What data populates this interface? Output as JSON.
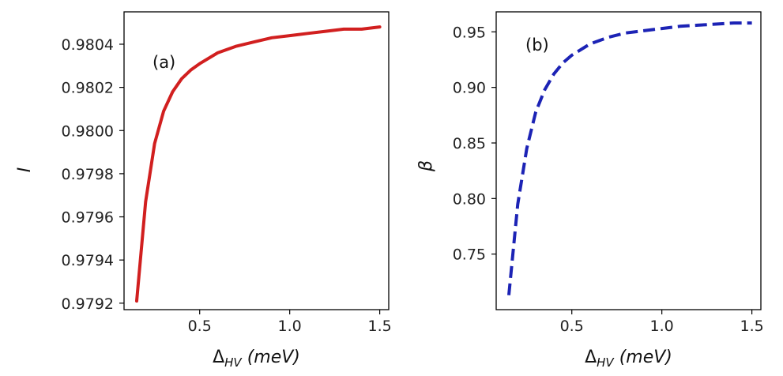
{
  "chart_data": [
    {
      "type": "line",
      "panel_label": "(a)",
      "ylabel": "I",
      "xlabel": {
        "base": "Δ",
        "sub": "HV",
        "unit": "(meV)"
      },
      "xlim": [
        0.08,
        1.55
      ],
      "ylim": [
        0.97917,
        0.98055
      ],
      "xticks": [
        0.5,
        1.0,
        1.5
      ],
      "xtick_labels": [
        "0.5",
        "1.0",
        "1.5"
      ],
      "yticks": [
        0.9792,
        0.9794,
        0.9796,
        0.9798,
        0.98,
        0.9802,
        0.9804
      ],
      "ytick_labels": [
        "0.9792",
        "0.9794",
        "0.9796",
        "0.9798",
        "0.9800",
        "0.9802",
        "0.9804"
      ],
      "series": [
        {
          "name": "I",
          "color": "#d11f1f",
          "style": "solid",
          "x": [
            0.15,
            0.2,
            0.25,
            0.3,
            0.35,
            0.4,
            0.45,
            0.5,
            0.6,
            0.7,
            0.8,
            0.9,
            1.0,
            1.1,
            1.2,
            1.3,
            1.4,
            1.5
          ],
          "y": [
            0.97921,
            0.97967,
            0.97994,
            0.98009,
            0.98018,
            0.98024,
            0.98028,
            0.98031,
            0.98036,
            0.98039,
            0.98041,
            0.98043,
            0.98044,
            0.98045,
            0.98046,
            0.98047,
            0.98047,
            0.98048
          ]
        }
      ]
    },
    {
      "type": "line",
      "panel_label": "(b)",
      "ylabel": "β",
      "xlabel": {
        "base": "Δ",
        "sub": "HV",
        "unit": "(meV)"
      },
      "xlim": [
        0.08,
        1.55
      ],
      "ylim": [
        0.7,
        0.968
      ],
      "xticks": [
        0.5,
        1.0,
        1.5
      ],
      "xtick_labels": [
        "0.5",
        "1.0",
        "1.5"
      ],
      "yticks": [
        0.75,
        0.8,
        0.85,
        0.9,
        0.95
      ],
      "ytick_labels": [
        "0.75",
        "0.80",
        "0.85",
        "0.90",
        "0.95"
      ],
      "series": [
        {
          "name": "β",
          "color": "#1c23b5",
          "style": "dashed",
          "x": [
            0.15,
            0.2,
            0.25,
            0.3,
            0.35,
            0.4,
            0.45,
            0.5,
            0.6,
            0.7,
            0.8,
            0.9,
            1.0,
            1.1,
            1.2,
            1.3,
            1.4,
            1.5
          ],
          "y": [
            0.713,
            0.795,
            0.845,
            0.878,
            0.898,
            0.912,
            0.922,
            0.929,
            0.939,
            0.945,
            0.949,
            0.951,
            0.953,
            0.955,
            0.956,
            0.957,
            0.958,
            0.958
          ]
        }
      ]
    }
  ]
}
